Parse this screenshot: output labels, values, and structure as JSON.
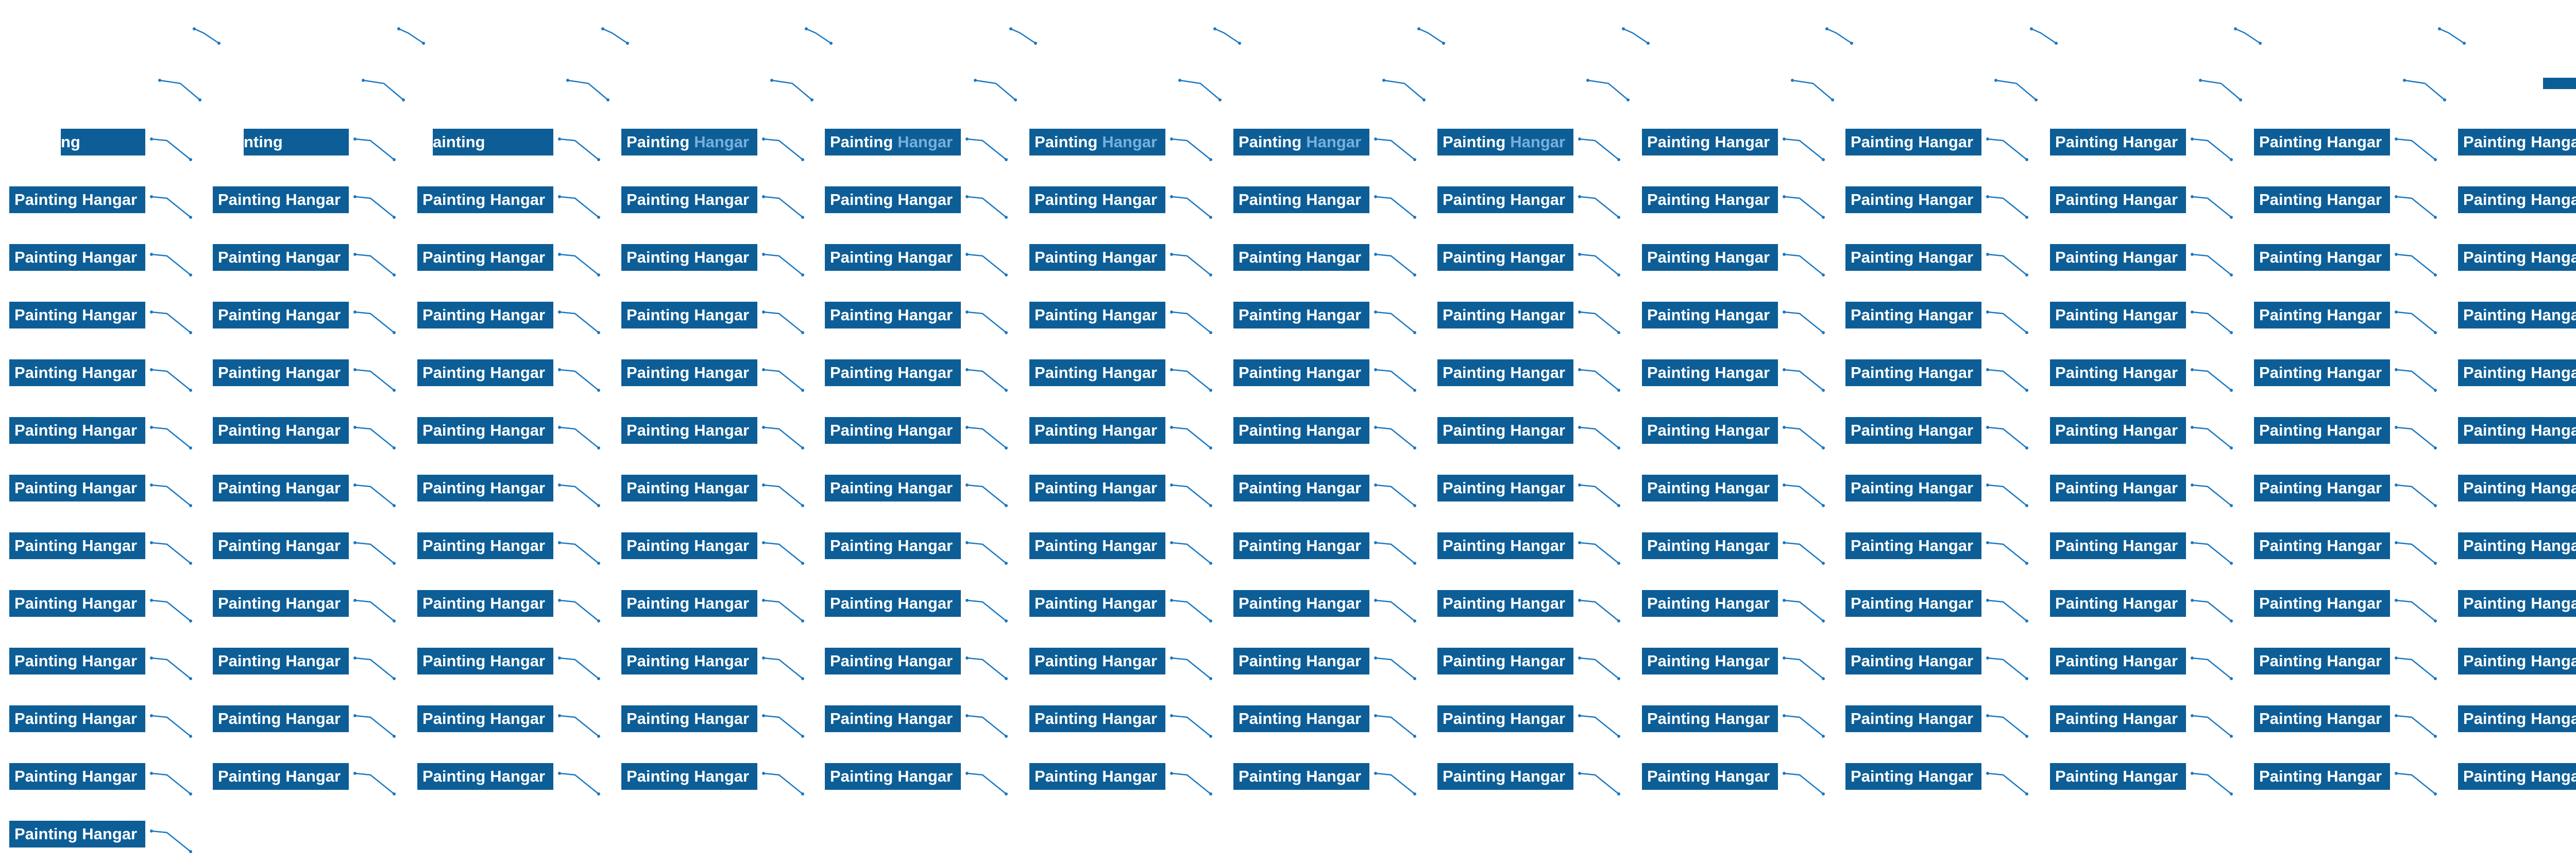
{
  "label_text": "Painting Hangar",
  "label_words": [
    "Painting",
    "Hangar"
  ],
  "grid": {
    "columns": 13,
    "frames": [
      {
        "visible_text": "ng"
      },
      {
        "visible_text": "nting"
      },
      {
        "visible_text": "ainting"
      },
      {
        "visible_text": "Painting Hangar",
        "faded_second_word": true
      },
      {
        "visible_text": "Painting Hangar",
        "faded_second_word": true
      },
      {
        "visible_text": "Painting Hangar",
        "faded_second_word": true
      },
      {
        "visible_text": "Painting Hangar",
        "faded_second_word": true
      },
      {
        "visible_text": "Painting Hangar",
        "faded_second_word": true
      },
      {
        "visible_text": "Painting Hangar"
      }
    ]
  },
  "colors": {
    "label_background": "#0d5e96",
    "label_text": "#ffffff",
    "label_text_faded": "#76b0dc",
    "leader_line": "#1a78c2",
    "page_background": "#ffffff"
  }
}
